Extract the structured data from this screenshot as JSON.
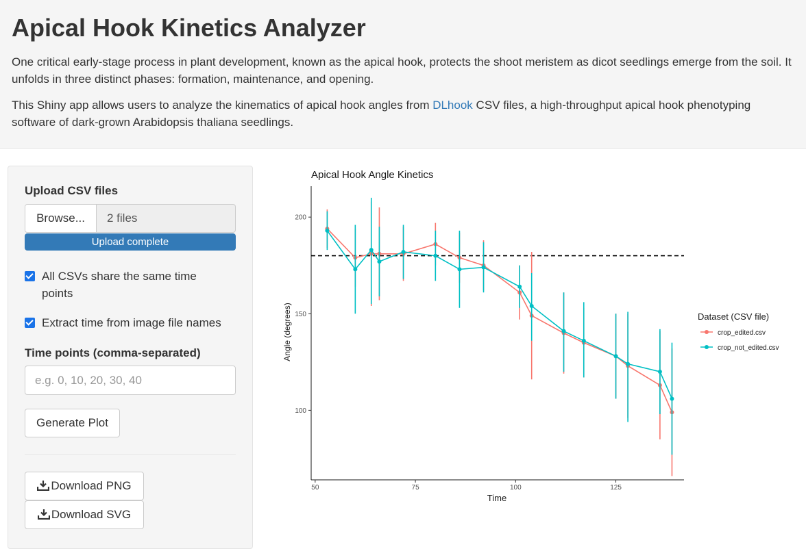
{
  "header": {
    "title": "Apical Hook Kinetics Analyzer",
    "para1": "One critical early-stage process in plant development, known as the apical hook, protects the shoot meristem as dicot seedlings emerge from the soil. It unfolds in three distinct phases: formation, maintenance, and opening.",
    "para2_before": "This Shiny app allows users to analyze the kinematics of apical hook angles from ",
    "para2_link": "DLhook",
    "para2_after": " CSV files, a high-throughput apical hook phenotyping software of dark-grown Arabidopsis thaliana seedlings."
  },
  "sidebar": {
    "upload_label": "Upload CSV files",
    "browse_label": "Browse...",
    "file_count": "2 files",
    "progress_label": "Upload complete",
    "progress_value": 1.0,
    "check_same_time": {
      "label": "All CSVs share the same time points",
      "checked": true
    },
    "check_extract_time": {
      "label": "Extract time from image file names",
      "checked": true
    },
    "time_points_label": "Time points (comma-separated)",
    "time_points_placeholder": "e.g. 0, 10, 20, 30, 40",
    "time_points_value": "",
    "generate_label": "Generate Plot",
    "download_png_label": "Download PNG",
    "download_svg_label": "Download SVG",
    "icons": {
      "download": "download-icon"
    }
  },
  "chart_data": {
    "type": "line",
    "title": "Apical Hook Angle Kinetics",
    "xlabel": "Time",
    "ylabel": "Angle (degrees)",
    "xlim": [
      49,
      142
    ],
    "ylim": [
      64,
      216
    ],
    "xticks": [
      50,
      75,
      100,
      125
    ],
    "yticks": [
      100,
      150,
      200
    ],
    "grid": false,
    "reference_line": {
      "y": 180,
      "style": "dashed",
      "color": "#000000"
    },
    "legend": {
      "title": "Dataset (CSV file)",
      "position": "right"
    },
    "series": [
      {
        "name": "crop_edited.csv",
        "color": "#F8766D",
        "points": [
          {
            "x": 53,
            "y": 194,
            "lo": 184,
            "hi": 204
          },
          {
            "x": 60,
            "y": 179,
            "lo": 164,
            "hi": 194
          },
          {
            "x": 64,
            "y": 181,
            "lo": 154,
            "hi": 208
          },
          {
            "x": 66,
            "y": 181,
            "lo": 157,
            "hi": 205
          },
          {
            "x": 72,
            "y": 181,
            "lo": 167,
            "hi": 195
          },
          {
            "x": 80,
            "y": 186,
            "lo": 175,
            "hi": 197
          },
          {
            "x": 86,
            "y": 179,
            "lo": 166,
            "hi": 192
          },
          {
            "x": 92,
            "y": 175,
            "lo": 162,
            "hi": 188
          },
          {
            "x": 101,
            "y": 161,
            "lo": 147,
            "hi": 175
          },
          {
            "x": 104,
            "y": 149,
            "lo": 116,
            "hi": 182
          },
          {
            "x": 112,
            "y": 140,
            "lo": 119,
            "hi": 161
          },
          {
            "x": 117,
            "y": 135,
            "lo": 117,
            "hi": 153
          },
          {
            "x": 125,
            "y": 128,
            "lo": 106,
            "hi": 150
          },
          {
            "x": 128,
            "y": 123,
            "lo": 96,
            "hi": 150
          },
          {
            "x": 136,
            "y": 113,
            "lo": 85,
            "hi": 141
          },
          {
            "x": 139,
            "y": 99,
            "lo": 66,
            "hi": 132
          }
        ]
      },
      {
        "name": "crop_not_edited.csv",
        "color": "#00BFC4",
        "points": [
          {
            "x": 53,
            "y": 193,
            "lo": 183,
            "hi": 203
          },
          {
            "x": 60,
            "y": 173,
            "lo": 150,
            "hi": 196
          },
          {
            "x": 64,
            "y": 183,
            "lo": 155,
            "hi": 210
          },
          {
            "x": 66,
            "y": 177,
            "lo": 159,
            "hi": 195
          },
          {
            "x": 72,
            "y": 182,
            "lo": 168,
            "hi": 196
          },
          {
            "x": 80,
            "y": 180,
            "lo": 167,
            "hi": 193
          },
          {
            "x": 86,
            "y": 173,
            "lo": 153,
            "hi": 193
          },
          {
            "x": 92,
            "y": 174,
            "lo": 161,
            "hi": 187
          },
          {
            "x": 101,
            "y": 164,
            "lo": 153,
            "hi": 175
          },
          {
            "x": 104,
            "y": 154,
            "lo": 136,
            "hi": 171
          },
          {
            "x": 112,
            "y": 141,
            "lo": 120,
            "hi": 161
          },
          {
            "x": 117,
            "y": 136,
            "lo": 117,
            "hi": 156
          },
          {
            "x": 125,
            "y": 128,
            "lo": 106,
            "hi": 150
          },
          {
            "x": 128,
            "y": 124,
            "lo": 94,
            "hi": 151
          },
          {
            "x": 136,
            "y": 120,
            "lo": 98,
            "hi": 142
          },
          {
            "x": 139,
            "y": 106,
            "lo": 77,
            "hi": 135
          }
        ]
      }
    ]
  }
}
